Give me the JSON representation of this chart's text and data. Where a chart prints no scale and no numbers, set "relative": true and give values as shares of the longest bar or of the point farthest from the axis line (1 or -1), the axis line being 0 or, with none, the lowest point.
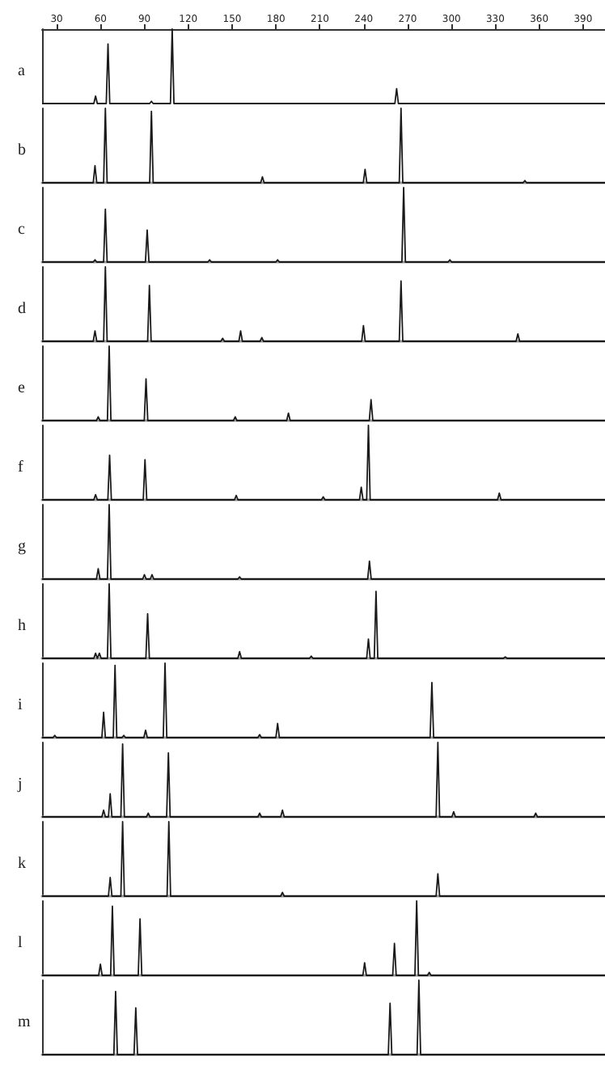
{
  "chart_data": [
    {
      "type": "line",
      "title": "a",
      "relative": true,
      "color": "#1a1a1a",
      "xlim": [
        20,
        405
      ],
      "xticks": [
        30,
        60,
        90,
        120,
        150,
        180,
        210,
        240,
        270,
        300,
        330,
        360,
        390
      ],
      "tick_labels": "x",
      "x": [
        20,
        55.4,
        56.6,
        57.8,
        63.9,
        65.1,
        66.3,
        93.6,
        94.8,
        96,
        107.8,
        109,
        110.2,
        261.3,
        262.5,
        263.7,
        405
      ],
      "values": [
        0,
        0,
        0.1,
        0,
        0,
        0.8,
        0,
        0,
        0.03,
        0,
        0,
        1,
        0,
        0,
        0.2,
        0,
        0
      ]
    },
    {
      "type": "line",
      "title": "b",
      "relative": true,
      "color": "#1a1a1a",
      "xlim": [
        20,
        405
      ],
      "tick_labels": false,
      "x": [
        20,
        55,
        56.2,
        57.4,
        62.1,
        63.3,
        64.5,
        93.6,
        94.8,
        96,
        169.5,
        170.7,
        171.9,
        239.7,
        240.9,
        242.1,
        264.3,
        265.5,
        266.7,
        349,
        350.2,
        351.4,
        405
      ],
      "values": [
        0,
        0,
        0.23,
        0,
        0,
        1,
        0,
        0,
        0.96,
        0,
        0,
        0.08,
        0,
        0,
        0.18,
        0,
        0,
        1,
        0,
        0,
        0.03,
        0,
        0
      ]
    },
    {
      "type": "line",
      "title": "c",
      "relative": true,
      "color": "#1a1a1a",
      "xlim": [
        20,
        405
      ],
      "tick_labels": false,
      "x": [
        20,
        55,
        56.2,
        57.4,
        62.1,
        63.3,
        64.5,
        90.7,
        91.9,
        93.1,
        133.4,
        134.6,
        135.8,
        179.9,
        181.1,
        182.3,
        266.1,
        267.3,
        268.5,
        297.7,
        298.9,
        300.1,
        405
      ],
      "values": [
        0,
        0,
        0.03,
        0,
        0,
        0.71,
        0,
        0,
        0.43,
        0,
        0,
        0.03,
        0,
        0,
        0.03,
        0,
        0,
        1,
        0,
        0,
        0.03,
        0,
        0
      ]
    },
    {
      "type": "line",
      "title": "d",
      "relative": true,
      "color": "#1a1a1a",
      "xlim": [
        20,
        405
      ],
      "tick_labels": false,
      "x": [
        20,
        55,
        56.2,
        57.4,
        62.1,
        63.3,
        64.5,
        92.2,
        93.4,
        94.6,
        142.3,
        143.5,
        144.7,
        154.6,
        155.8,
        157,
        169.1,
        170.3,
        171.5,
        238.6,
        239.8,
        241,
        264.3,
        265.5,
        266.7,
        344.2,
        345.4,
        346.6,
        405
      ],
      "values": [
        0,
        0,
        0.14,
        0,
        0,
        1,
        0,
        0,
        0.75,
        0,
        0,
        0.04,
        0,
        0,
        0.14,
        0,
        0,
        0.05,
        0,
        0,
        0.21,
        0,
        0,
        0.81,
        0,
        0,
        0.1,
        0,
        0
      ]
    },
    {
      "type": "line",
      "title": "e",
      "relative": true,
      "color": "#1a1a1a",
      "xlim": [
        20,
        405
      ],
      "tick_labels": false,
      "x": [
        20,
        57.2,
        58.4,
        59.6,
        64.7,
        65.9,
        67.1,
        89.9,
        91.1,
        92.3,
        150.9,
        152.1,
        153.3,
        187.3,
        188.5,
        189.7,
        243.8,
        245,
        246.2,
        405
      ],
      "values": [
        0,
        0,
        0.05,
        0,
        0,
        1,
        0,
        0,
        0.56,
        0,
        0,
        0.05,
        0,
        0,
        0.1,
        0,
        0,
        0.28,
        0,
        0
      ]
    },
    {
      "type": "line",
      "title": "f",
      "relative": true,
      "color": "#1a1a1a",
      "xlim": [
        20,
        405
      ],
      "tick_labels": false,
      "x": [
        20,
        55.4,
        56.6,
        57.8,
        65,
        66.2,
        67.4,
        89.2,
        90.4,
        91.6,
        151.6,
        152.8,
        154,
        211.1,
        212.3,
        213.5,
        237.1,
        238.3,
        239.5,
        242,
        243.2,
        244.4,
        331.5,
        332.7,
        333.9,
        405
      ],
      "values": [
        0,
        0,
        0.07,
        0,
        0,
        0.6,
        0,
        0,
        0.54,
        0,
        0,
        0.06,
        0,
        0,
        0.04,
        0,
        0,
        0.17,
        0,
        0,
        1,
        0,
        0,
        0.09,
        0,
        0
      ]
    },
    {
      "type": "line",
      "title": "g",
      "relative": true,
      "color": "#1a1a1a",
      "xlim": [
        20,
        405
      ],
      "tick_labels": false,
      "x": [
        20,
        57.2,
        58.4,
        59.6,
        64.7,
        65.9,
        67.1,
        88.8,
        90,
        91.2,
        94,
        95.2,
        96.4,
        153.9,
        155.1,
        156.3,
        242.7,
        243.9,
        245.1,
        405
      ],
      "values": [
        0,
        0,
        0.14,
        0,
        0,
        1,
        0,
        0,
        0.06,
        0,
        0,
        0.06,
        0,
        0,
        0.03,
        0,
        0,
        0.24,
        0,
        0
      ]
    },
    {
      "type": "line",
      "title": "h",
      "relative": true,
      "color": "#1a1a1a",
      "xlim": [
        20,
        405
      ],
      "tick_labels": false,
      "x": [
        20,
        55.4,
        56.6,
        57.8,
        58,
        59.2,
        60.4,
        64.7,
        65.9,
        67.1,
        91,
        92.2,
        93.4,
        153.9,
        155.1,
        156.3,
        202.9,
        204.1,
        205.3,
        242,
        243.2,
        244.4,
        247.2,
        248.4,
        249.6,
        335.6,
        336.8,
        338,
        405
      ],
      "values": [
        0,
        0,
        0.07,
        0,
        0,
        0.07,
        0,
        0,
        1,
        0,
        0,
        0.6,
        0,
        0,
        0.09,
        0,
        0,
        0.03,
        0,
        0,
        0.26,
        0,
        0,
        0.9,
        0,
        0,
        0.02,
        0,
        0
      ]
    },
    {
      "type": "line",
      "title": "i",
      "relative": true,
      "color": "#1a1a1a",
      "xlim": [
        20,
        405
      ],
      "tick_labels": false,
      "x": [
        20,
        27.5,
        28.7,
        29.9,
        60.9,
        62.1,
        63.3,
        68.7,
        69.9,
        71.1,
        74.7,
        75.9,
        77.1,
        89.6,
        90.8,
        92,
        102.9,
        104.1,
        105.3,
        167.6,
        168.8,
        170,
        179.9,
        181.1,
        182.3,
        285.4,
        286.6,
        287.8,
        405
      ],
      "values": [
        0,
        0,
        0.03,
        0,
        0,
        0.34,
        0,
        0,
        0.97,
        0,
        0,
        0.03,
        0,
        0,
        0.1,
        0,
        0,
        1,
        0,
        0,
        0.04,
        0,
        0,
        0.19,
        0,
        0,
        0.74,
        0,
        0
      ]
    },
    {
      "type": "line",
      "title": "j",
      "relative": true,
      "color": "#1a1a1a",
      "xlim": [
        20,
        405
      ],
      "tick_labels": false,
      "x": [
        20,
        60.9,
        62.1,
        63.3,
        65.4,
        66.6,
        67.8,
        73.9,
        75.1,
        76.3,
        91.4,
        92.6,
        93.8,
        105.2,
        106.4,
        107.6,
        167.6,
        168.8,
        170,
        183.2,
        184.4,
        185.6,
        289.5,
        290.7,
        291.9,
        300.3,
        301.5,
        302.7,
        356.4,
        357.6,
        358.8,
        405
      ],
      "values": [
        0,
        0,
        0.09,
        0,
        0,
        0.31,
        0,
        0,
        0.98,
        0,
        0,
        0.05,
        0,
        0,
        0.86,
        0,
        0,
        0.05,
        0,
        0,
        0.09,
        0,
        0,
        1,
        0,
        0,
        0.07,
        0,
        0,
        0.05,
        0,
        0
      ]
    },
    {
      "type": "line",
      "title": "k",
      "relative": true,
      "color": "#1a1a1a",
      "xlim": [
        20,
        405
      ],
      "tick_labels": false,
      "x": [
        20,
        65.4,
        66.6,
        67.8,
        73.9,
        75.1,
        76.3,
        105.5,
        106.7,
        107.9,
        183.2,
        184.4,
        185.6,
        289.5,
        290.7,
        291.9,
        405
      ],
      "values": [
        0,
        0,
        0.25,
        0,
        0,
        1,
        0,
        0,
        1,
        0,
        0,
        0.05,
        0,
        0,
        0.3,
        0,
        0
      ]
    },
    {
      "type": "line",
      "title": "l",
      "relative": true,
      "color": "#1a1a1a",
      "xlim": [
        20,
        405
      ],
      "tick_labels": false,
      "x": [
        20,
        58.7,
        59.9,
        61.1,
        66.9,
        68.1,
        69.3,
        85.8,
        87,
        88.2,
        239.4,
        240.6,
        241.8,
        259.8,
        261,
        262.2,
        275,
        276.2,
        277.4,
        283.6,
        284.8,
        286,
        405
      ],
      "values": [
        0,
        0,
        0.15,
        0,
        0,
        0.93,
        0,
        0,
        0.76,
        0,
        0,
        0.17,
        0,
        0,
        0.43,
        0,
        0,
        1,
        0,
        0,
        0.04,
        0,
        0
      ]
    },
    {
      "type": "line",
      "title": "m",
      "relative": true,
      "color": "#1a1a1a",
      "xlim": [
        20,
        405
      ],
      "tick_labels": false,
      "x": [
        20,
        69.1,
        70.3,
        71.5,
        82.9,
        84.1,
        85.3,
        256.8,
        258,
        259.2,
        276.5,
        277.7,
        278.9,
        405
      ],
      "values": [
        0,
        0,
        0.85,
        0,
        0,
        0.63,
        0,
        0,
        0.69,
        0,
        0,
        1,
        0,
        0
      ]
    }
  ]
}
